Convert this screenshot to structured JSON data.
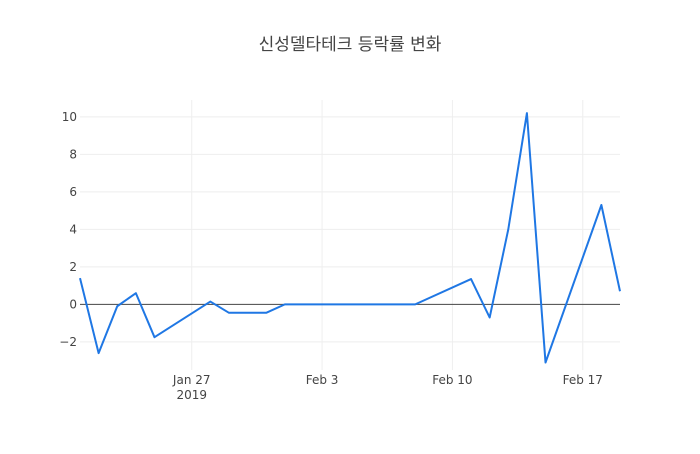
{
  "chart_data": {
    "type": "line",
    "title": "신성델타테크 등락률 변화",
    "xlabel": "",
    "ylabel": "",
    "x": [
      "2019-01-21",
      "2019-01-22",
      "2019-01-23",
      "2019-01-24",
      "2019-01-25",
      "2019-01-28",
      "2019-01-29",
      "2019-01-30",
      "2019-01-31",
      "2019-02-01",
      "2019-02-07",
      "2019-02-08",
      "2019-02-11",
      "2019-02-12",
      "2019-02-13",
      "2019-02-14",
      "2019-02-15",
      "2019-02-18",
      "2019-02-19"
    ],
    "series": [
      {
        "values": [
          1.4,
          -2.6,
          -0.1,
          0.6,
          -1.75,
          0.15,
          -0.45,
          -0.45,
          -0.45,
          0.0,
          0.0,
          0.0,
          1.35,
          -0.7,
          4.0,
          10.2,
          -3.1,
          5.3,
          0.7
        ],
        "color": "#1f77e4"
      }
    ],
    "xlim": [
      "2019-01-21",
      "2019-02-19"
    ],
    "ylim": [
      -3.5,
      10.9
    ],
    "yticks": [
      -2,
      0,
      2,
      4,
      6,
      8,
      10
    ],
    "xticks": [
      {
        "date": "2019-01-27",
        "label": "Jan 27",
        "sublabel": "2019"
      },
      {
        "date": "2019-02-03",
        "label": "Feb 3",
        "sublabel": ""
      },
      {
        "date": "2019-02-10",
        "label": "Feb 10",
        "sublabel": ""
      },
      {
        "date": "2019-02-17",
        "label": "Feb 17",
        "sublabel": ""
      }
    ],
    "grid": true,
    "legend": "none"
  }
}
